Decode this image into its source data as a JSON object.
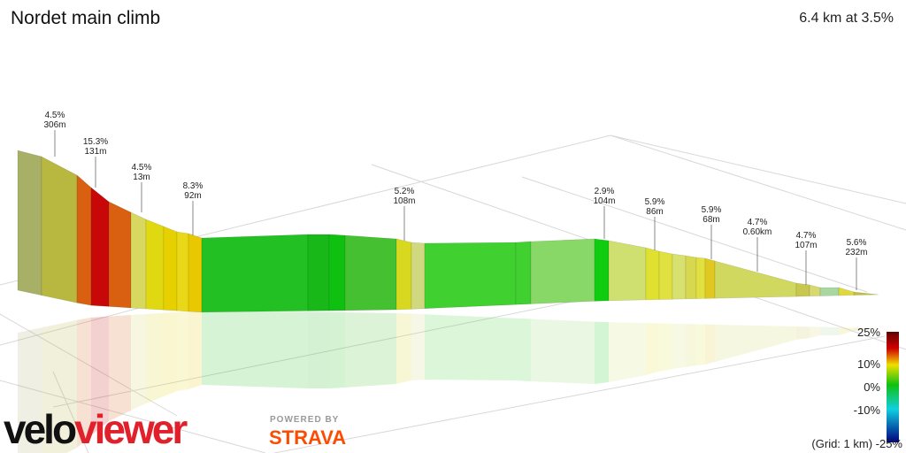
{
  "header": {
    "title": "Nordet main climb",
    "summary": "6.4 km at 3.5%"
  },
  "segment_labels": [
    {
      "gradient": "4.5%",
      "length": "306m"
    },
    {
      "gradient": "15.3%",
      "length": "131m"
    },
    {
      "gradient": "4.5%",
      "length": "13m"
    },
    {
      "gradient": "8.3%",
      "length": "92m"
    },
    {
      "gradient": "5.2%",
      "length": "108m"
    },
    {
      "gradient": "2.9%",
      "length": "104m"
    },
    {
      "gradient": "5.9%",
      "length": "86m"
    },
    {
      "gradient": "5.9%",
      "length": "68m"
    },
    {
      "gradient": "4.7%",
      "length": "0.60km"
    },
    {
      "gradient": "4.7%",
      "length": "107m"
    },
    {
      "gradient": "5.6%",
      "length": "232m"
    }
  ],
  "legend": {
    "ticks": [
      "25%",
      "10%",
      "0%",
      "-10%"
    ],
    "bottom": "(Grid: 1 km) -25%"
  },
  "branding": {
    "logo_a": "velo",
    "logo_b": "viewer",
    "powered": "POWERED BY",
    "partner": "STRAVA"
  }
}
